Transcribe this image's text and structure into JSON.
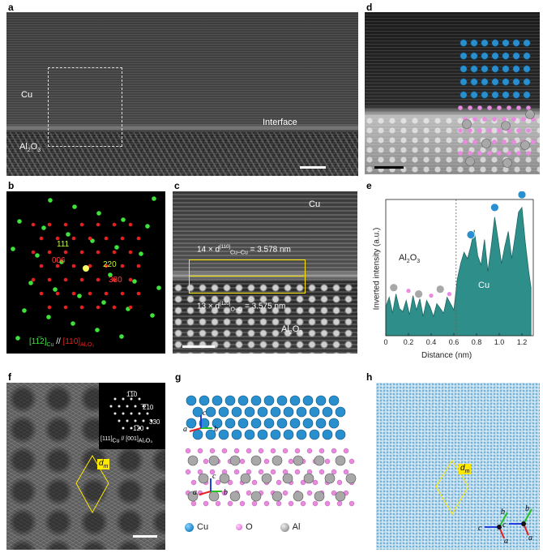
{
  "panels": {
    "a": {
      "label": "a",
      "cu": "Cu",
      "al2o3": "Al",
      "al2o3_sub1": "2",
      "al2o3_o": "O",
      "al2o3_sub2": "3",
      "interface": "Interface"
    },
    "b": {
      "label": "b",
      "spots": [
        {
          "text": "111",
          "color": "green"
        },
        {
          "text": "006",
          "color": "red"
        },
        {
          "text": "220",
          "color": "green"
        },
        {
          "text": "330",
          "color": "red"
        }
      ],
      "caption_cu": "[11̅2]",
      "caption_cu_sub": "Cu",
      "caption_sep": "//",
      "caption_al": "[110]",
      "caption_al_sub": "Al₂O₃"
    },
    "c": {
      "label": "c",
      "cu": "Cu",
      "eq1": "14 × d",
      "eq1_sup": "[110]",
      "eq1_sub": "Cu–Cu",
      "eq1_val": "= 3.578 nm",
      "eq2": "13 × d",
      "eq2_sup": "[120]",
      "eq2_sub": "O–O",
      "eq2_val": "= 3.575 nm",
      "al2o3": "Al",
      "al2o3_sub1": "2",
      "al2o3_o": "O",
      "al2o3_sub2": "3"
    },
    "d": {
      "label": "d"
    },
    "e": {
      "label": "e",
      "ylabel": "Inverted intensity (a.u.)",
      "xlabel": "Distance (nm)",
      "al2o3": "Al",
      "al2o3_sub1": "2",
      "al2o3_o": "O",
      "al2o3_sub2": "3",
      "cu": "Cu"
    },
    "f": {
      "label": "f",
      "dm": "d",
      "dm_sub": "m",
      "fft": [
        "1̅1̅0",
        "̅2̅10",
        "330",
        "1̅20"
      ],
      "caption": "[111]",
      "caption_sub": "Cu",
      "caption_sep": "//",
      "caption2": "[001]",
      "caption2_sub": "Al₂O₃"
    },
    "g": {
      "label": "g",
      "legend": [
        {
          "name": "Cu",
          "color": "#2a8fcf"
        },
        {
          "name": "O",
          "color": "#e98ae0"
        },
        {
          "name": "Al",
          "color": "#a8a8a8"
        }
      ],
      "axes_top": [
        "a",
        "b",
        "c"
      ],
      "axes_bottom": [
        "a",
        "b",
        "c"
      ]
    },
    "h": {
      "label": "h",
      "dm": "d",
      "dm_sub": "m",
      "axes_left": [
        "b",
        "c",
        "a"
      ],
      "axes_right": [
        "b",
        "c",
        "a"
      ]
    }
  },
  "chart_data": {
    "type": "line",
    "xlabel": "Distance (nm)",
    "ylabel": "Inverted intensity (a.u.)",
    "xlim": [
      0,
      1.3
    ],
    "xticks": [
      "0",
      "0.2",
      "0.4",
      "0.6",
      "0.8",
      "1.0",
      "1.2"
    ],
    "interface_x": 0.62,
    "x": [
      0,
      0.03,
      0.06,
      0.09,
      0.12,
      0.15,
      0.18,
      0.21,
      0.24,
      0.27,
      0.3,
      0.33,
      0.36,
      0.39,
      0.42,
      0.45,
      0.48,
      0.51,
      0.54,
      0.57,
      0.6,
      0.63,
      0.66,
      0.69,
      0.72,
      0.75,
      0.78,
      0.81,
      0.84,
      0.87,
      0.9,
      0.93,
      0.96,
      0.99,
      1.02,
      1.05,
      1.08,
      1.11,
      1.14,
      1.17,
      1.2,
      1.23,
      1.26,
      1.28
    ],
    "y": [
      0.18,
      0.24,
      0.14,
      0.26,
      0.17,
      0.15,
      0.22,
      0.13,
      0.25,
      0.16,
      0.23,
      0.12,
      0.22,
      0.18,
      0.12,
      0.2,
      0.17,
      0.14,
      0.24,
      0.2,
      0.16,
      0.35,
      0.45,
      0.52,
      0.48,
      0.56,
      0.66,
      0.5,
      0.44,
      0.6,
      0.4,
      0.56,
      0.74,
      0.6,
      0.45,
      0.56,
      0.65,
      0.48,
      0.62,
      0.77,
      0.8,
      0.58,
      0.4,
      0.3
    ]
  },
  "colors": {
    "teal": "#2e8f8a",
    "cu_blue": "#2a8fcf",
    "o_pink": "#e98ae0",
    "al_grey": "#a8a8a8",
    "green": "#3fe23a",
    "red": "#e52020",
    "yellow": "#ffe800"
  }
}
